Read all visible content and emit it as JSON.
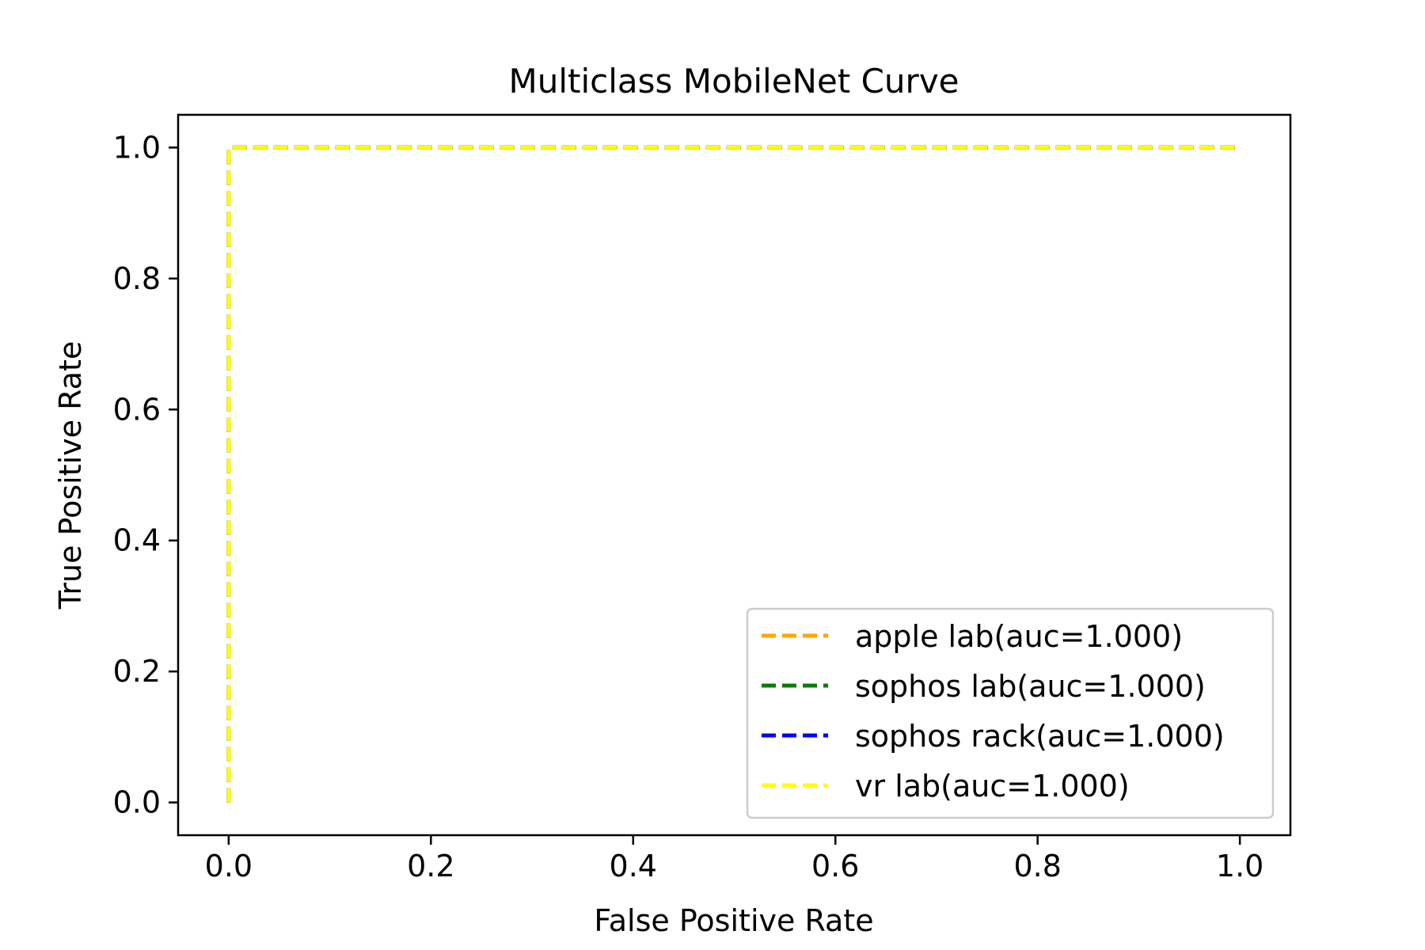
{
  "chart_data": {
    "type": "line",
    "title": "Multiclass MobileNet Curve",
    "xlabel": "False Positive Rate",
    "ylabel": "True Positive Rate",
    "xlim": [
      -0.05,
      1.05
    ],
    "ylim": [
      -0.05,
      1.05
    ],
    "xticks": [
      0.0,
      0.2,
      0.4,
      0.6,
      0.8,
      1.0
    ],
    "yticks": [
      0.0,
      0.2,
      0.4,
      0.6,
      0.8,
      1.0
    ],
    "xtick_labels": [
      "0.0",
      "0.2",
      "0.4",
      "0.6",
      "0.8",
      "1.0"
    ],
    "ytick_labels": [
      "0.0",
      "0.2",
      "0.4",
      "0.6",
      "0.8",
      "1.0"
    ],
    "grid": false,
    "legend_position": "lower-right",
    "series": [
      {
        "name": "apple lab(auc=1.000)",
        "color": "#FFA500",
        "line_style": "dashed",
        "x": [
          0.0,
          0.0,
          1.0
        ],
        "y": [
          0.0,
          1.0,
          1.0
        ]
      },
      {
        "name": "sophos lab(auc=1.000)",
        "color": "#008000",
        "line_style": "dashed",
        "x": [
          0.0,
          0.0,
          1.0
        ],
        "y": [
          0.0,
          1.0,
          1.0
        ]
      },
      {
        "name": "sophos rack(auc=1.000)",
        "color": "#0000FF",
        "line_style": "dashed",
        "x": [
          0.0,
          0.0,
          1.0
        ],
        "y": [
          0.0,
          1.0,
          1.0
        ]
      },
      {
        "name": "vr lab(auc=1.000)",
        "color": "#FFFF00",
        "line_style": "dashed",
        "x": [
          0.0,
          0.0,
          1.0
        ],
        "y": [
          0.0,
          1.0,
          1.0
        ]
      }
    ]
  }
}
